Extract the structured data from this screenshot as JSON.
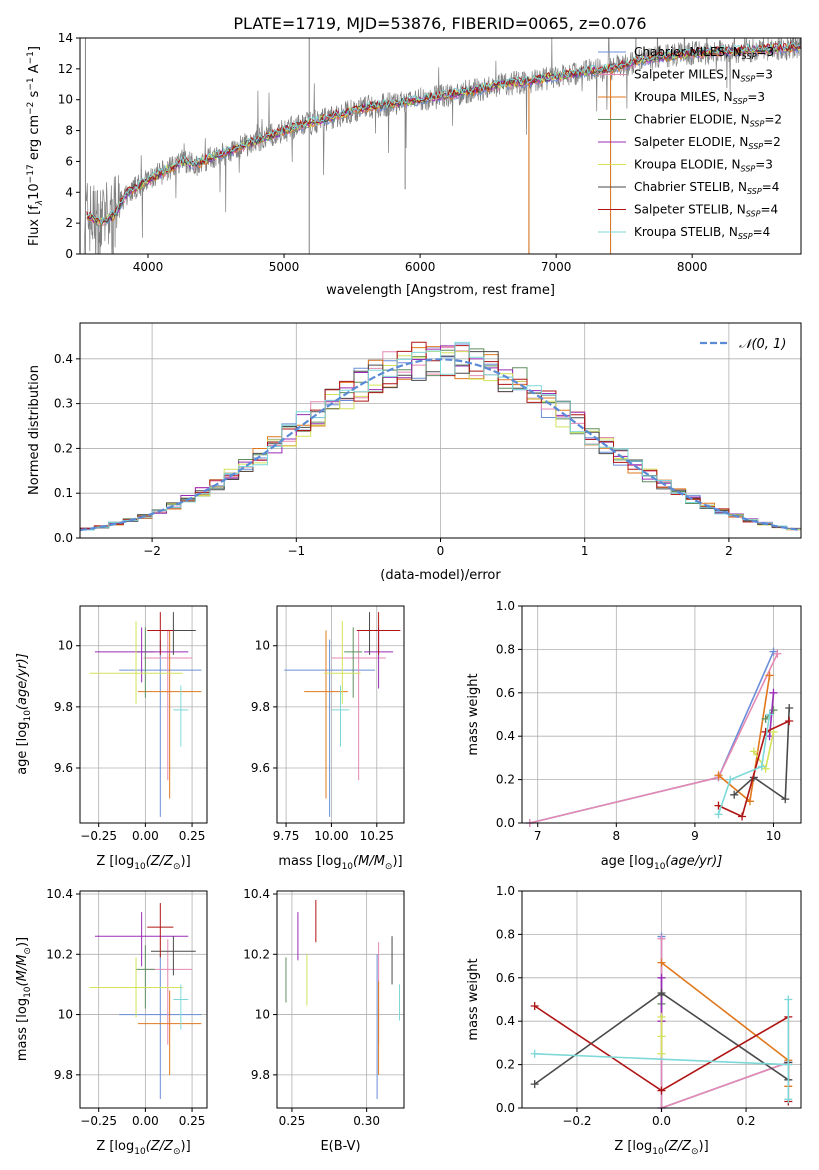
{
  "figure_title": "PLATE=1719, MJD=53876, FIBERID=0065, z=0.076",
  "colors": {
    "Chabrier MILES": "#6a8fd8",
    "Salpeter MILES": "#e589b3",
    "Kroupa MILES": "#e0781e",
    "Chabrier ELODIE": "#5f8f5f",
    "Salpeter ELODIE": "#9a2bb8",
    "Kroupa ELODIE": "#d4e25a",
    "Chabrier STELIB": "#4a4a4a",
    "Salpeter STELIB": "#b01414",
    "Kroupa STELIB": "#7ed8d8",
    "data": "#808080",
    "normal": "#5b8bd6"
  },
  "chart_data": [
    {
      "id": "spectrum",
      "type": "line",
      "xlabel": "wavelength [Angstrom, rest frame]",
      "ylabel": "Flux [f",
      "ylabel_sub": "λ",
      "ylabel_rest": "10",
      "ylabel_exp": "−17",
      "ylabel_tail": " erg cm",
      "ylabel_tail2": " s",
      "ylabel_tail3": " A",
      "xlim": [
        3500,
        8800
      ],
      "ylim": [
        0,
        14
      ],
      "xticks": [
        4000,
        5000,
        6000,
        7000,
        8000
      ],
      "yticks": [
        0,
        2,
        4,
        6,
        8,
        10,
        12,
        14
      ],
      "grid": false,
      "legend": "top-right",
      "legend_entries": [
        {
          "pre": "Chabrier MILES, N",
          "sub": "SSP",
          "post": "=3"
        },
        {
          "pre": "Salpeter MILES, N",
          "sub": "SSP",
          "post": "=3"
        },
        {
          "pre": "Kroupa MILES, N",
          "sub": "SSP",
          "post": "=3"
        },
        {
          "pre": "Chabrier ELODIE, N",
          "sub": "SSP",
          "post": "=2"
        },
        {
          "pre": "Salpeter ELODIE, N",
          "sub": "SSP",
          "post": "=2"
        },
        {
          "pre": "Kroupa ELODIE, N",
          "sub": "SSP",
          "post": "=3"
        },
        {
          "pre": "Chabrier STELIB, N",
          "sub": "SSP",
          "post": "=4"
        },
        {
          "pre": "Salpeter STELIB, N",
          "sub": "SSP",
          "post": "=4"
        },
        {
          "pre": "Kroupa STELIB, N",
          "sub": "SSP",
          "post": "=4"
        }
      ],
      "continuum": {
        "x": [
          3550,
          3650,
          3750,
          3850,
          3950,
          4050,
          4150,
          4250,
          4350,
          4450,
          4550,
          4700,
          4850,
          5000,
          5200,
          5400,
          5600,
          5800,
          6000,
          6200,
          6400,
          6600,
          6800,
          7000,
          7200,
          7400,
          7600,
          7800,
          8000,
          8200,
          8400,
          8600,
          8800
        ],
        "y": [
          2.5,
          2.0,
          2.5,
          4.0,
          4.5,
          5.0,
          5.5,
          6.0,
          5.8,
          6.2,
          6.5,
          7.0,
          7.5,
          8.0,
          8.5,
          9.0,
          9.5,
          9.7,
          10.0,
          10.3,
          10.6,
          11.0,
          11.2,
          11.5,
          11.8,
          12.0,
          12.5,
          12.8,
          13.0,
          13.1,
          13.2,
          13.3,
          13.4
        ]
      }
    },
    {
      "id": "residuals",
      "type": "bar",
      "xlabel": "(data-model)/error",
      "ylabel": "Normed distribution",
      "xlim": [
        -2.5,
        2.5
      ],
      "ylim": [
        0,
        0.48
      ],
      "xticks": [
        -2,
        -1,
        0,
        1,
        2
      ],
      "yticks": [
        0.0,
        0.1,
        0.2,
        0.3,
        0.4
      ],
      "grid": true,
      "legend": "top-right",
      "legend_label": "𝒩(0, 1)",
      "bin_width": 0.1,
      "bin_start": -2.5
    },
    {
      "id": "age-vs-Z",
      "type": "scatter",
      "xlabel": "Z [log",
      "xlabel_sub": "10",
      "xlabel_rest": "(Z/Z",
      "xlabel_sun": "⊙",
      "xlabel_close": ")]",
      "ylabel": "age  [log",
      "ylabel_sub": "10",
      "ylabel_rest": "(age/yr)]",
      "xlim": [
        -0.35,
        0.33
      ],
      "ylim": [
        9.42,
        10.13
      ],
      "xticks": [
        -0.25,
        0.0,
        0.25
      ],
      "xticklabels": [
        "−0.25",
        "0.00",
        "0.25"
      ],
      "yticks": [
        9.6,
        9.8,
        10.0
      ],
      "grid": true,
      "points": [
        {
          "model": "Chabrier MILES",
          "x": 0.08,
          "y": 9.92,
          "xerr": 0.22,
          "yerr": [
            0.48,
            0.1
          ]
        },
        {
          "model": "Salpeter MILES",
          "x": 0.12,
          "y": 9.96,
          "xerr": 0.13,
          "yerr": [
            0.4,
            0.09
          ]
        },
        {
          "model": "Kroupa MILES",
          "x": 0.13,
          "y": 9.85,
          "xerr": 0.17,
          "yerr": [
            0.35,
            0.2
          ]
        },
        {
          "model": "Chabrier ELODIE",
          "x": 0.0,
          "y": 9.98,
          "xerr": 0.05,
          "yerr": [
            0.15,
            0.08
          ]
        },
        {
          "model": "Salpeter ELODIE",
          "x": -0.02,
          "y": 9.98,
          "xerr": 0.25,
          "yerr": [
            0.1,
            0.08
          ]
        },
        {
          "model": "Kroupa ELODIE",
          "x": -0.05,
          "y": 9.91,
          "xerr": 0.25,
          "yerr": [
            0.1,
            0.17
          ]
        },
        {
          "model": "Chabrier STELIB",
          "x": 0.15,
          "y": 10.05,
          "xerr": 0.12,
          "yerr": [
            0.08,
            0.06
          ]
        },
        {
          "model": "Salpeter STELIB",
          "x": 0.08,
          "y": 10.05,
          "xerr": 0.07,
          "yerr": [
            0.08,
            0.06
          ]
        },
        {
          "model": "Kroupa STELIB",
          "x": 0.19,
          "y": 9.79,
          "xerr": 0.04,
          "yerr": [
            0.12,
            0.08
          ]
        }
      ]
    },
    {
      "id": "age-vs-mass",
      "type": "scatter",
      "xlabel": "mass [log",
      "xlabel_sub": "10",
      "xlabel_rest": "(M/M",
      "xlabel_sun": "⊙",
      "xlabel_close": ")]",
      "xlim": [
        9.7,
        10.4
      ],
      "ylim": [
        9.42,
        10.13
      ],
      "xticks": [
        9.75,
        10.0,
        10.25
      ],
      "xticklabels": [
        "9.75",
        "10.00",
        "10.25"
      ],
      "yticks": [
        9.6,
        9.8,
        10.0
      ],
      "grid": true,
      "points": [
        {
          "model": "Chabrier MILES",
          "x": 9.99,
          "y": 9.92,
          "xerr": 0.25,
          "yerr": [
            0.48,
            0.1
          ]
        },
        {
          "model": "Salpeter MILES",
          "x": 10.15,
          "y": 9.96,
          "xerr": 0.15,
          "yerr": [
            0.4,
            0.09
          ]
        },
        {
          "model": "Kroupa MILES",
          "x": 9.97,
          "y": 9.85,
          "xerr": 0.12,
          "yerr": [
            0.35,
            0.2
          ]
        },
        {
          "model": "Chabrier ELODIE",
          "x": 10.12,
          "y": 9.98,
          "xerr": 0.05,
          "yerr": [
            0.15,
            0.08
          ]
        },
        {
          "model": "Salpeter ELODIE",
          "x": 10.26,
          "y": 9.98,
          "xerr": 0.08,
          "yerr": [
            0.12,
            0.08
          ]
        },
        {
          "model": "Kroupa ELODIE",
          "x": 10.06,
          "y": 9.91,
          "xerr": 0.1,
          "yerr": [
            0.1,
            0.17
          ]
        },
        {
          "model": "Chabrier STELIB",
          "x": 10.21,
          "y": 10.05,
          "xerr": 0.05,
          "yerr": [
            0.08,
            0.06
          ]
        },
        {
          "model": "Salpeter STELIB",
          "x": 10.26,
          "y": 10.05,
          "xerr": 0.12,
          "yerr": [
            0.08,
            0.06
          ]
        },
        {
          "model": "Kroupa STELIB",
          "x": 10.05,
          "y": 9.79,
          "xerr": 0.05,
          "yerr": [
            0.12,
            0.08
          ]
        }
      ]
    },
    {
      "id": "weight-vs-age",
      "type": "line",
      "xlabel": "age  [log",
      "xlabel_sub": "10",
      "xlabel_rest": "(age/yr)]",
      "ylabel": "mass weight",
      "xlim": [
        6.8,
        10.35
      ],
      "ylim": [
        0,
        1.0
      ],
      "xticks": [
        7,
        8,
        9,
        10
      ],
      "yticks": [
        0.0,
        0.2,
        0.4,
        0.6,
        0.8,
        1.0
      ],
      "yticklabels": [
        "0.0",
        "0.2",
        "0.4",
        "0.6",
        "0.8",
        "1.0"
      ],
      "grid": true,
      "series": [
        {
          "model": "Chabrier MILES",
          "x": [
            6.9,
            9.3,
            10.0
          ],
          "y": [
            0.0,
            0.21,
            0.79
          ]
        },
        {
          "model": "Salpeter MILES",
          "x": [
            6.9,
            9.3,
            10.05
          ],
          "y": [
            0.0,
            0.21,
            0.78
          ]
        },
        {
          "model": "Kroupa MILES",
          "x": [
            9.3,
            9.7,
            9.95
          ],
          "y": [
            0.22,
            0.1,
            0.68
          ]
        },
        {
          "model": "Chabrier ELODIE",
          "x": [
            9.9,
            10.0
          ],
          "y": [
            0.48,
            0.52
          ]
        },
        {
          "model": "Salpeter ELODIE",
          "x": [
            9.95,
            10.0
          ],
          "y": [
            0.4,
            0.6
          ]
        },
        {
          "model": "Kroupa ELODIE",
          "x": [
            9.75,
            9.9,
            10.0
          ],
          "y": [
            0.33,
            0.25,
            0.42
          ]
        },
        {
          "model": "Chabrier STELIB",
          "x": [
            9.5,
            9.75,
            10.15,
            10.2
          ],
          "y": [
            0.13,
            0.21,
            0.11,
            0.53
          ]
        },
        {
          "model": "Salpeter STELIB",
          "x": [
            9.3,
            9.6,
            9.9,
            10.2
          ],
          "y": [
            0.08,
            0.03,
            0.42,
            0.47
          ]
        },
        {
          "model": "Kroupa STELIB",
          "x": [
            9.3,
            9.45,
            9.85,
            9.95
          ],
          "y": [
            0.04,
            0.2,
            0.26,
            0.5
          ]
        }
      ]
    },
    {
      "id": "mass-vs-Z",
      "type": "scatter",
      "xlabel": "Z [log",
      "xlabel_sub": "10",
      "xlabel_rest": "(Z/Z",
      "xlabel_sun": "⊙",
      "xlabel_close": ")]",
      "ylabel": "mass [log",
      "ylabel_sub": "10",
      "ylabel_rest": "(M/M",
      "ylabel_sun": "⊙",
      "ylabel_close": ")]",
      "xlim": [
        -0.35,
        0.33
      ],
      "ylim": [
        9.69,
        10.41
      ],
      "xticks": [
        -0.25,
        0.0,
        0.25
      ],
      "xticklabels": [
        "−0.25",
        "0.00",
        "0.25"
      ],
      "yticks": [
        9.8,
        10.0,
        10.2,
        10.4
      ],
      "grid": true,
      "points": [
        {
          "model": "Chabrier MILES",
          "x": 0.08,
          "y": 10.0,
          "xerr": 0.22,
          "yerr": [
            0.28,
            0.2
          ]
        },
        {
          "model": "Salpeter MILES",
          "x": 0.12,
          "y": 10.15,
          "xerr": 0.13,
          "yerr": [
            0.25,
            0.1
          ]
        },
        {
          "model": "Kroupa MILES",
          "x": 0.13,
          "y": 9.97,
          "xerr": 0.17,
          "yerr": [
            0.17,
            0.11
          ]
        },
        {
          "model": "Chabrier ELODIE",
          "x": 0.0,
          "y": 10.15,
          "xerr": 0.05,
          "yerr": [
            0.13,
            0.08
          ]
        },
        {
          "model": "Salpeter ELODIE",
          "x": -0.02,
          "y": 10.26,
          "xerr": 0.25,
          "yerr": [
            0.1,
            0.08
          ]
        },
        {
          "model": "Kroupa ELODIE",
          "x": -0.05,
          "y": 10.09,
          "xerr": 0.25,
          "yerr": [
            0.1,
            0.1
          ]
        },
        {
          "model": "Chabrier STELIB",
          "x": 0.15,
          "y": 10.21,
          "xerr": 0.12,
          "yerr": [
            0.08,
            0.05
          ]
        },
        {
          "model": "Salpeter STELIB",
          "x": 0.08,
          "y": 10.29,
          "xerr": 0.07,
          "yerr": [
            0.1,
            0.08
          ]
        },
        {
          "model": "Kroupa STELIB",
          "x": 0.19,
          "y": 10.05,
          "xerr": 0.04,
          "yerr": [
            0.1,
            0.05
          ]
        }
      ]
    },
    {
      "id": "mass-vs-EBV",
      "type": "scatter",
      "xlabel": "E(B-V)",
      "xlim": [
        0.24,
        0.325
      ],
      "ylim": [
        9.69,
        10.41
      ],
      "xticks": [
        0.25,
        0.3
      ],
      "xticklabels": [
        "0.25",
        "0.30"
      ],
      "yticks": [
        9.8,
        10.0,
        10.2,
        10.4
      ],
      "grid": true,
      "points": [
        {
          "model": "Chabrier MILES",
          "x": 0.307,
          "y": 10.0,
          "yerr": [
            0.28,
            0.2
          ]
        },
        {
          "model": "Salpeter MILES",
          "x": 0.308,
          "y": 10.15,
          "yerr": [
            0.25,
            0.09
          ]
        },
        {
          "model": "Kroupa MILES",
          "x": 0.308,
          "y": 9.97,
          "yerr": [
            0.17,
            0.14
          ]
        },
        {
          "model": "Chabrier ELODIE",
          "x": 0.246,
          "y": 10.12,
          "yerr": [
            0.08,
            0.07
          ]
        },
        {
          "model": "Salpeter ELODIE",
          "x": 0.254,
          "y": 10.26,
          "yerr": [
            0.08,
            0.08
          ]
        },
        {
          "model": "Kroupa ELODIE",
          "x": 0.26,
          "y": 10.12,
          "yerr": [
            0.09,
            0.08
          ]
        },
        {
          "model": "Chabrier STELIB",
          "x": 0.317,
          "y": 10.18,
          "yerr": [
            0.08,
            0.08
          ]
        },
        {
          "model": "Salpeter STELIB",
          "x": 0.266,
          "y": 10.31,
          "yerr": [
            0.07,
            0.07
          ]
        },
        {
          "model": "Kroupa STELIB",
          "x": 0.322,
          "y": 10.04,
          "yerr": [
            0.06,
            0.06
          ]
        }
      ]
    },
    {
      "id": "weight-vs-Z",
      "type": "line",
      "xlabel": "Z [log",
      "xlabel_sub": "10",
      "xlabel_rest": "(Z/Z",
      "xlabel_sun": "⊙",
      "xlabel_close": ")]",
      "ylabel": "mass weight",
      "xlim": [
        -0.33,
        0.33
      ],
      "ylim": [
        0,
        1.0
      ],
      "xticks": [
        -0.2,
        0.0,
        0.2
      ],
      "xticklabels": [
        "−0.2",
        "0.0",
        "0.2"
      ],
      "yticks": [
        0.0,
        0.2,
        0.4,
        0.6,
        0.8,
        1.0
      ],
      "yticklabels": [
        "0.0",
        "0.2",
        "0.4",
        "0.6",
        "0.8",
        "1.0"
      ],
      "grid": true,
      "series": [
        {
          "model": "Chabrier MILES",
          "x": [
            0.0,
            0.0,
            0.3
          ],
          "y": [
            0.79,
            0.0,
            0.21
          ]
        },
        {
          "model": "Salpeter MILES",
          "x": [
            0.0,
            0.0,
            0.3
          ],
          "y": [
            0.78,
            0.0,
            0.21
          ]
        },
        {
          "model": "Kroupa MILES",
          "x": [
            0.0,
            0.3,
            0.3
          ],
          "y": [
            0.67,
            0.22,
            0.1
          ]
        },
        {
          "model": "Chabrier ELODIE",
          "x": [
            0.0,
            0.0
          ],
          "y": [
            0.48,
            0.52
          ]
        },
        {
          "model": "Salpeter ELODIE",
          "x": [
            0.0,
            0.0
          ],
          "y": [
            0.4,
            0.6
          ]
        },
        {
          "model": "Kroupa ELODIE",
          "x": [
            0.0,
            0.0,
            0.0
          ],
          "y": [
            0.33,
            0.25,
            0.42
          ]
        },
        {
          "model": "Chabrier STELIB",
          "x": [
            -0.3,
            0.0,
            0.3,
            0.3
          ],
          "y": [
            0.11,
            0.53,
            0.13,
            0.21
          ]
        },
        {
          "model": "Salpeter STELIB",
          "x": [
            -0.3,
            0.0,
            0.3,
            0.3
          ],
          "y": [
            0.47,
            0.08,
            0.42,
            0.03
          ]
        },
        {
          "model": "Kroupa STELIB",
          "x": [
            -0.3,
            0.3,
            0.3,
            0.3
          ],
          "y": [
            0.25,
            0.2,
            0.04,
            0.5
          ]
        }
      ]
    }
  ]
}
